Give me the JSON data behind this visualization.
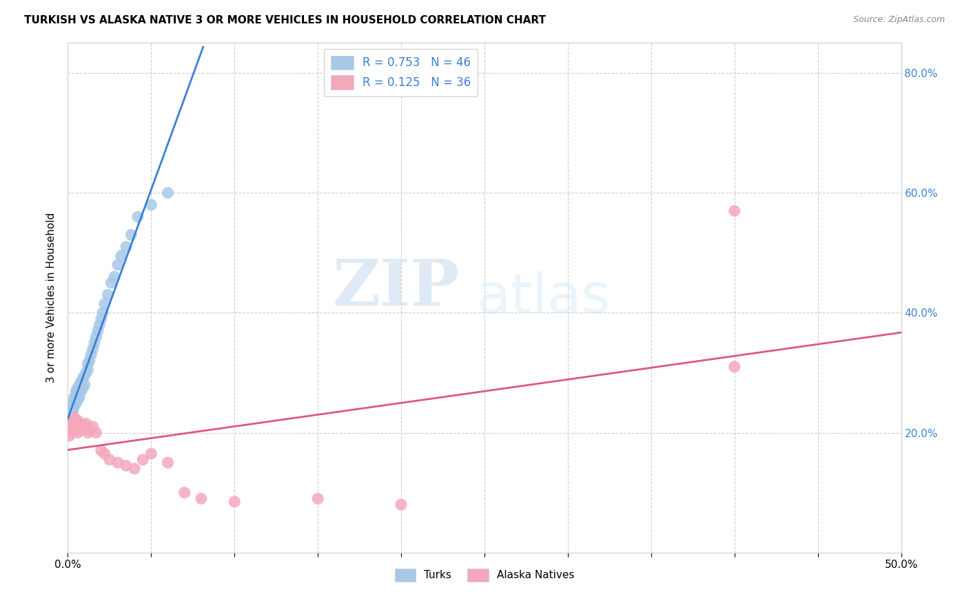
{
  "title": "TURKISH VS ALASKA NATIVE 3 OR MORE VEHICLES IN HOUSEHOLD CORRELATION CHART",
  "source": "Source: ZipAtlas.com",
  "ylabel": "3 or more Vehicles in Household",
  "xmin": 0.0,
  "xmax": 0.5,
  "ymin": 0.0,
  "ymax": 0.85,
  "turks_color": "#a8c8e8",
  "alaska_color": "#f4a8bc",
  "turks_line_color": "#3a7fd5",
  "alaska_line_color": "#e05878",
  "R_turks": 0.753,
  "N_turks": 46,
  "R_alaska": 0.125,
  "N_alaska": 36,
  "turks_x": [
    0.001,
    0.002,
    0.002,
    0.003,
    0.003,
    0.003,
    0.004,
    0.004,
    0.004,
    0.005,
    0.005,
    0.005,
    0.006,
    0.006,
    0.006,
    0.007,
    0.007,
    0.008,
    0.008,
    0.009,
    0.009,
    0.01,
    0.01,
    0.011,
    0.012,
    0.012,
    0.013,
    0.014,
    0.015,
    0.016,
    0.017,
    0.018,
    0.019,
    0.02,
    0.021,
    0.022,
    0.024,
    0.026,
    0.028,
    0.03,
    0.032,
    0.035,
    0.038,
    0.042,
    0.05,
    0.06
  ],
  "turks_y": [
    0.22,
    0.225,
    0.23,
    0.235,
    0.24,
    0.25,
    0.245,
    0.255,
    0.26,
    0.25,
    0.265,
    0.27,
    0.255,
    0.27,
    0.275,
    0.26,
    0.28,
    0.27,
    0.285,
    0.275,
    0.29,
    0.28,
    0.295,
    0.3,
    0.305,
    0.315,
    0.32,
    0.33,
    0.34,
    0.35,
    0.36,
    0.37,
    0.38,
    0.39,
    0.4,
    0.415,
    0.43,
    0.45,
    0.46,
    0.48,
    0.495,
    0.51,
    0.53,
    0.56,
    0.58,
    0.6
  ],
  "alaska_x": [
    0.001,
    0.002,
    0.002,
    0.003,
    0.003,
    0.004,
    0.004,
    0.005,
    0.005,
    0.006,
    0.006,
    0.007,
    0.008,
    0.009,
    0.01,
    0.011,
    0.012,
    0.013,
    0.015,
    0.017,
    0.02,
    0.022,
    0.025,
    0.03,
    0.035,
    0.04,
    0.045,
    0.05,
    0.06,
    0.07,
    0.08,
    0.1,
    0.15,
    0.2,
    0.4,
    0.4
  ],
  "alaska_y": [
    0.195,
    0.2,
    0.215,
    0.205,
    0.22,
    0.21,
    0.225,
    0.205,
    0.215,
    0.2,
    0.22,
    0.21,
    0.215,
    0.205,
    0.21,
    0.215,
    0.2,
    0.205,
    0.21,
    0.2,
    0.17,
    0.165,
    0.155,
    0.15,
    0.145,
    0.14,
    0.155,
    0.165,
    0.15,
    0.1,
    0.09,
    0.085,
    0.09,
    0.08,
    0.31,
    0.57
  ],
  "watermark_zip": "ZIP",
  "watermark_atlas": "atlas",
  "background_color": "#ffffff",
  "grid_color": "#cccccc",
  "grid_style": "--"
}
